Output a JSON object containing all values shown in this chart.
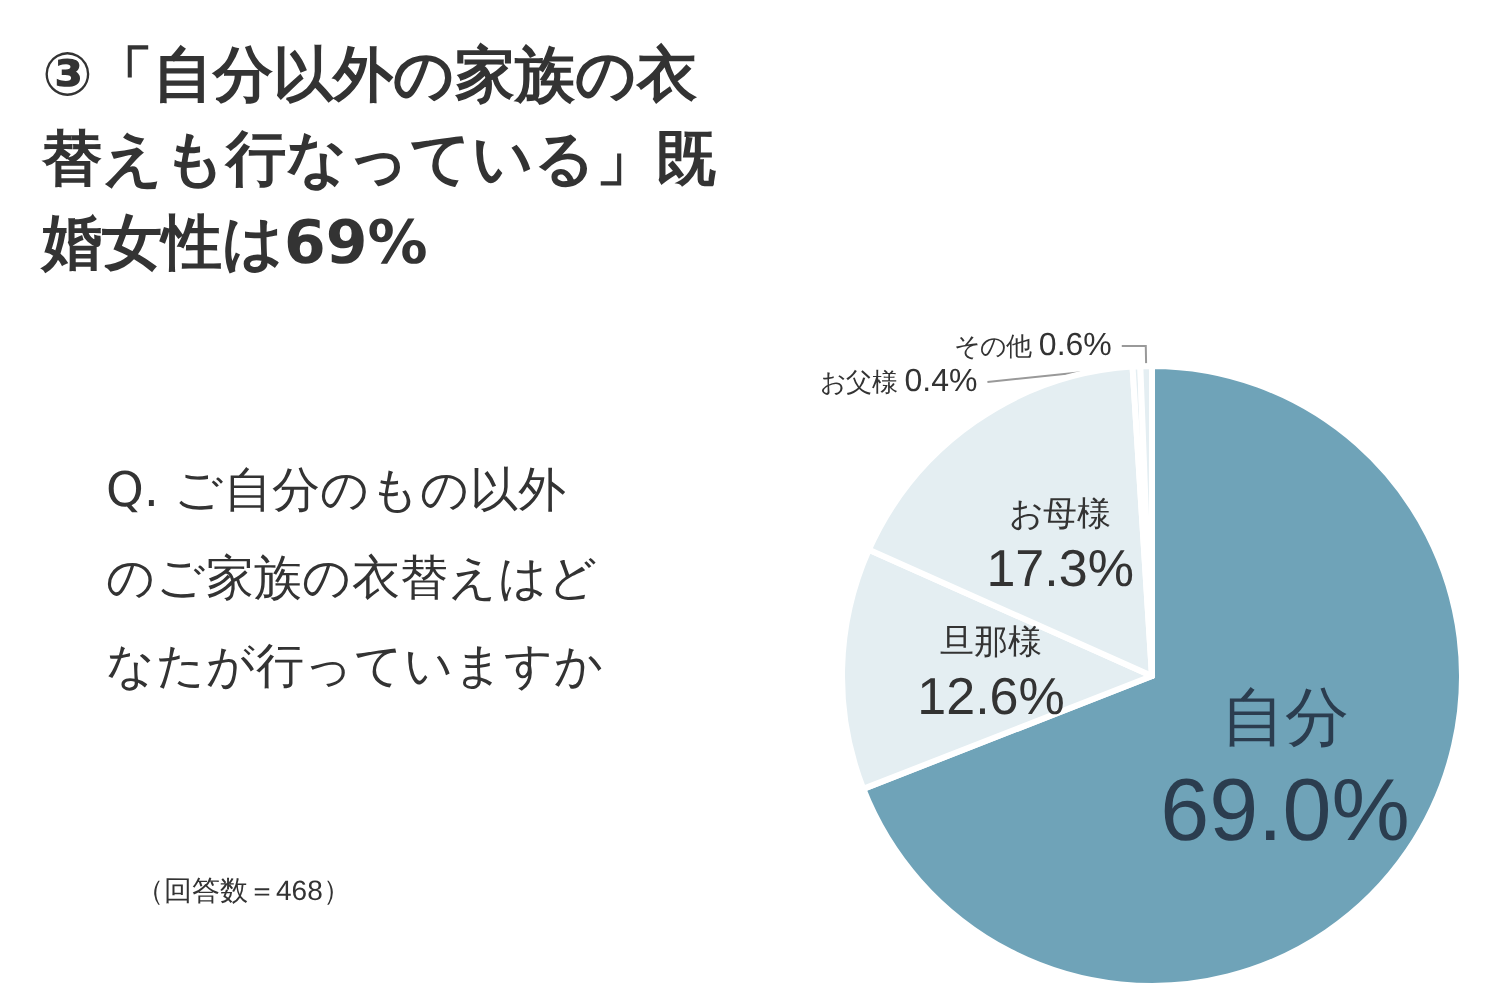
{
  "chart_data": {
    "type": "pie",
    "title": "③「自分以外の家族の衣替えも行なっている」既婚女性は69%",
    "subtitle": "Q. ご自分のもの以外のご家族の衣替えはどなたが行っていますか",
    "annotations": [
      "（回答数＝468）"
    ],
    "categories": [
      "自分",
      "旦那様",
      "お母様",
      "お父様",
      "その他"
    ],
    "values": [
      69.0,
      12.6,
      17.3,
      0.4,
      0.6
    ],
    "value_labels": [
      "69.0%",
      "12.6%",
      "17.3%",
      "0.4%",
      "0.6%"
    ],
    "colors": [
      "#6fa3b8",
      "#e4eef2",
      "#e4eef2",
      "#e4eef2",
      "#e4eef2"
    ],
    "legend": false
  }
}
